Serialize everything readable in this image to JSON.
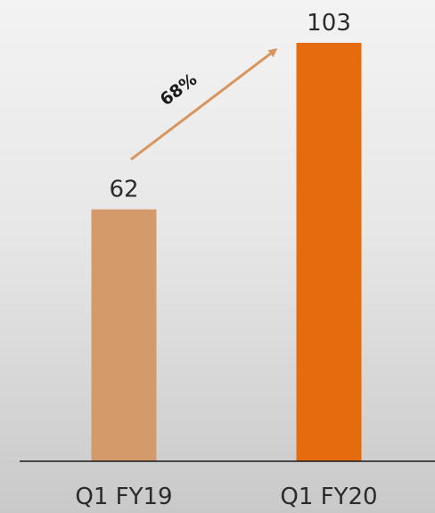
{
  "chart_data": {
    "type": "bar",
    "categories": [
      "Q1 FY19",
      "Q1 FY20"
    ],
    "values": [
      62,
      103
    ],
    "value_labels": [
      "62",
      "103"
    ],
    "title": "",
    "xlabel": "",
    "ylabel": "",
    "ylim": [
      0,
      112
    ],
    "grid": false,
    "legend": "none",
    "bar_colors": [
      "#d49a6a",
      "#e56b0c"
    ],
    "annotation": {
      "text": "68%",
      "type": "growth-arrow",
      "from_category": "Q1 FY19",
      "to_category": "Q1 FY20",
      "color": "#d9955e"
    }
  }
}
